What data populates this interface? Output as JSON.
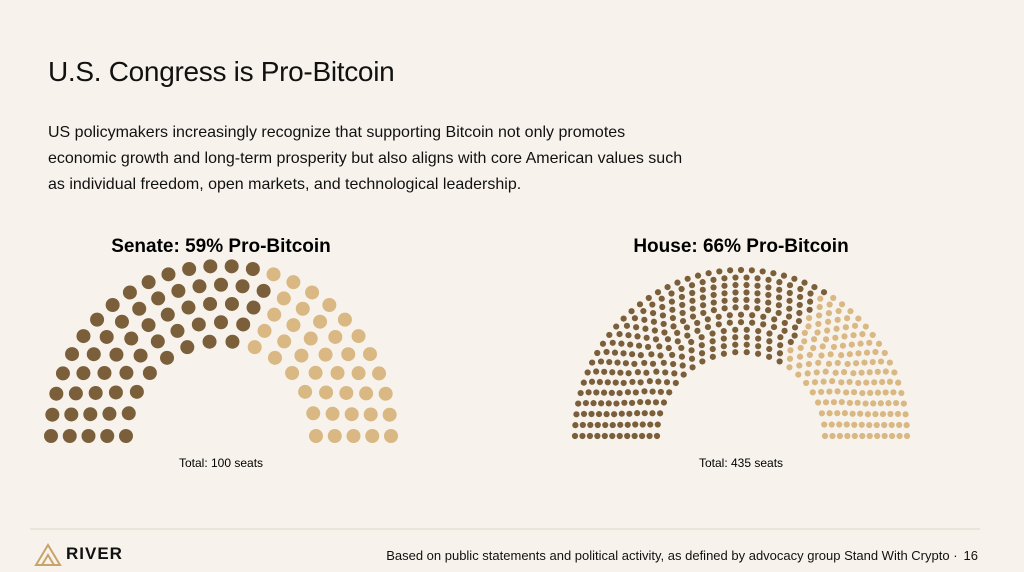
{
  "header": {
    "title": "U.S. Congress is Pro-Bitcoin",
    "description": "US policymakers increasingly recognize that supporting Bitcoin not only promotes economic growth and long-term prosperity but also aligns with core American values such as individual freedom, open markets, and technological leadership."
  },
  "chart_data": [
    {
      "type": "parliament",
      "title": "Senate: 59% Pro-Bitcoin",
      "subtitle": "Total: 100 seats",
      "values": [
        59,
        41
      ],
      "colors": [
        "#7b5f3b",
        "#d9b883"
      ]
    },
    {
      "type": "parliament",
      "title": "House: 66% Pro-Bitcoin",
      "subtitle": "Total: 435 seats",
      "values": [
        287,
        148
      ],
      "colors": [
        "#7b5f3b",
        "#d9b883"
      ]
    }
  ],
  "footer": {
    "brand": "RIVER",
    "source": "Based on public statements and political activity, as defined by advocacy group Stand With Crypto ·",
    "page": "16"
  }
}
